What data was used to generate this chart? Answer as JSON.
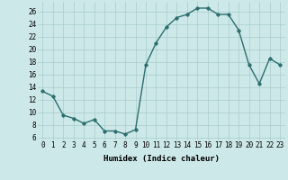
{
  "x": [
    0,
    1,
    2,
    3,
    4,
    5,
    6,
    7,
    8,
    9,
    10,
    11,
    12,
    13,
    14,
    15,
    16,
    17,
    18,
    19,
    20,
    21,
    22,
    23
  ],
  "y": [
    13.3,
    12.5,
    9.5,
    9.0,
    8.2,
    8.8,
    7.0,
    7.0,
    6.5,
    7.2,
    17.5,
    21.0,
    23.5,
    25.0,
    25.5,
    26.5,
    26.5,
    25.5,
    25.5,
    23.0,
    17.5,
    14.5,
    18.5,
    17.5
  ],
  "line_color": "#2d6e6e",
  "marker": "D",
  "markersize": 1.8,
  "linewidth": 1.0,
  "bg_color": "#cce8e8",
  "grid_color": "#aacccc",
  "xlabel": "Humidex (Indice chaleur)",
  "xlabel_fontsize": 6.5,
  "xlabel_fontname": "monospace",
  "ylabel_ticks": [
    6,
    8,
    10,
    12,
    14,
    16,
    18,
    20,
    22,
    24,
    26
  ],
  "xlim": [
    -0.5,
    23.5
  ],
  "ylim": [
    5.5,
    27.5
  ],
  "xtick_labels": [
    "0",
    "1",
    "2",
    "3",
    "4",
    "5",
    "6",
    "7",
    "8",
    "9",
    "10",
    "11",
    "12",
    "13",
    "14",
    "15",
    "16",
    "17",
    "18",
    "19",
    "20",
    "21",
    "22",
    "23"
  ],
  "tick_fontsize": 5.5,
  "tick_fontname": "monospace"
}
